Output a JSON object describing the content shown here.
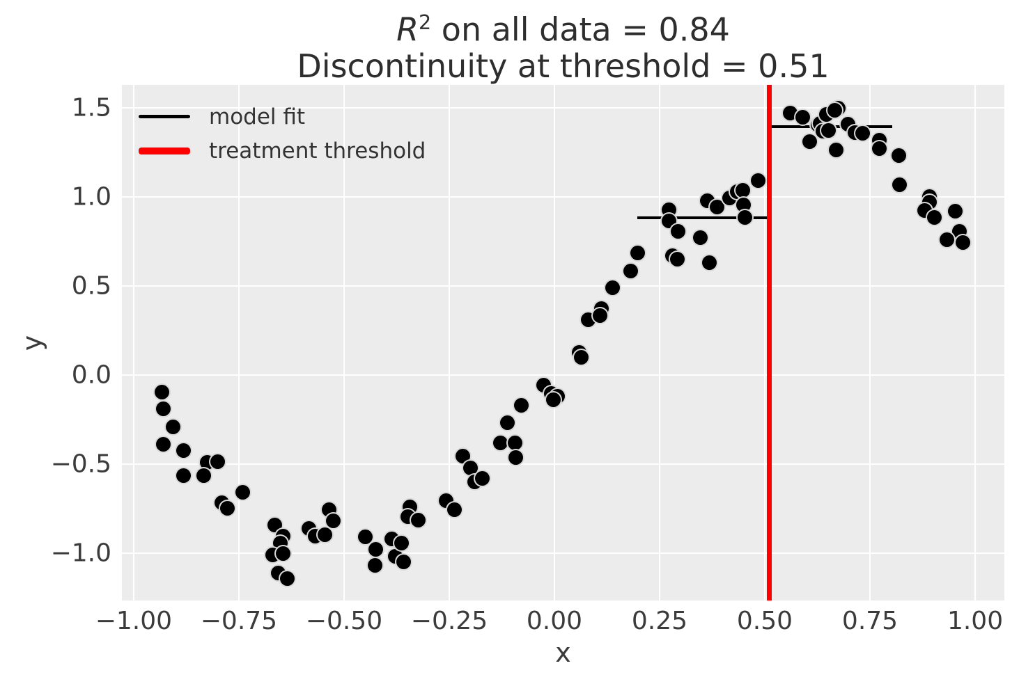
{
  "figure": {
    "title": {
      "r": "R",
      "exponent": "2",
      "line1_rest": " on all data = 0.84",
      "line2": "Discontinuity at threshold = 0.51"
    },
    "xlabel": "x",
    "ylabel": "y"
  },
  "legend": {
    "items": [
      {
        "label": "model fit",
        "color": "#000000",
        "thickness": 5
      },
      {
        "label": "treatment threshold",
        "color": "#ff0000",
        "thickness": 10
      }
    ]
  },
  "chart_data": {
    "type": "scatter",
    "title": "R^2 on all data = 0.84\nDiscontinuity at threshold = 0.51",
    "xlabel": "x",
    "ylabel": "y",
    "xlim": [
      -1.028,
      1.0695
    ],
    "ylim": [
      -1.266,
      1.629
    ],
    "grid": true,
    "background": "#ececec",
    "gridline_color": "#ffffff",
    "marker_color": "#000000",
    "xticks": [
      -1.0,
      -0.75,
      -0.5,
      -0.25,
      0.0,
      0.25,
      0.5,
      0.75,
      1.0
    ],
    "xtick_labels": [
      "−1.00",
      "−0.75",
      "−0.50",
      "−0.25",
      "0.00",
      "0.25",
      "0.50",
      "0.75",
      "1.00"
    ],
    "yticks": [
      1.5,
      1.0,
      0.5,
      0.0,
      -0.5,
      -1.0
    ],
    "ytick_labels": [
      "1.5",
      "1.0",
      "0.5",
      "0.0",
      "−0.5",
      "−1.0"
    ],
    "legend_position": "upper left",
    "threshold": {
      "x": 0.51,
      "color": "#ff0000",
      "label": "treatment threshold"
    },
    "fit_segments": [
      {
        "x1": 0.197,
        "x2": 0.51,
        "y": 0.883,
        "label": "model fit"
      },
      {
        "x1": 0.51,
        "x2": 0.803,
        "y": 1.395,
        "label": "model fit"
      }
    ],
    "points": [
      [
        -0.932,
        -0.094
      ],
      [
        -0.929,
        -0.188
      ],
      [
        -0.906,
        -0.293
      ],
      [
        -0.929,
        -0.387
      ],
      [
        -0.881,
        -0.426
      ],
      [
        -0.826,
        -0.492
      ],
      [
        -0.8,
        -0.488
      ],
      [
        -0.881,
        -0.563
      ],
      [
        -0.833,
        -0.566
      ],
      [
        -0.74,
        -0.66
      ],
      [
        -0.791,
        -0.719
      ],
      [
        -0.778,
        -0.75
      ],
      [
        -0.665,
        -0.844
      ],
      [
        -0.644,
        -0.906
      ],
      [
        -0.651,
        -0.945
      ],
      [
        -0.669,
        -1.012
      ],
      [
        -0.644,
        -1.004
      ],
      [
        -0.656,
        -1.113
      ],
      [
        -0.634,
        -1.141
      ],
      [
        -0.583,
        -0.863
      ],
      [
        -0.568,
        -0.906
      ],
      [
        -0.545,
        -0.895
      ],
      [
        -0.536,
        -0.758
      ],
      [
        -0.525,
        -0.82
      ],
      [
        -0.449,
        -0.91
      ],
      [
        -0.424,
        -0.98
      ],
      [
        -0.426,
        -1.07
      ],
      [
        -0.386,
        -0.922
      ],
      [
        -0.379,
        -1.016
      ],
      [
        -0.344,
        -0.742
      ],
      [
        -0.349,
        -0.797
      ],
      [
        -0.323,
        -0.813
      ],
      [
        -0.363,
        -0.945
      ],
      [
        -0.358,
        -1.051
      ],
      [
        -0.257,
        -0.707
      ],
      [
        -0.237,
        -0.758
      ],
      [
        -0.217,
        -0.457
      ],
      [
        -0.2,
        -0.52
      ],
      [
        -0.189,
        -0.598
      ],
      [
        -0.172,
        -0.582
      ],
      [
        -0.129,
        -0.383
      ],
      [
        -0.094,
        -0.383
      ],
      [
        -0.091,
        -0.465
      ],
      [
        -0.112,
        -0.266
      ],
      [
        -0.079,
        -0.172
      ],
      [
        -0.025,
        -0.055
      ],
      [
        -0.008,
        -0.102
      ],
      [
        0.008,
        -0.121
      ],
      [
        -0.002,
        -0.137
      ],
      [
        0.059,
        0.125
      ],
      [
        0.064,
        0.098
      ],
      [
        0.081,
        0.309
      ],
      [
        0.111,
        0.371
      ],
      [
        0.109,
        0.332
      ],
      [
        0.139,
        0.492
      ],
      [
        0.182,
        0.582
      ],
      [
        0.198,
        0.684
      ],
      [
        0.273,
        0.926
      ],
      [
        0.273,
        0.867
      ],
      [
        0.28,
        0.668
      ],
      [
        0.293,
        0.652
      ],
      [
        0.294,
        0.805
      ],
      [
        0.347,
        0.773
      ],
      [
        0.364,
        0.98
      ],
      [
        0.369,
        0.631
      ],
      [
        0.387,
        0.945
      ],
      [
        0.417,
        0.996
      ],
      [
        0.434,
        1.031
      ],
      [
        0.448,
        1.039
      ],
      [
        0.45,
        0.957
      ],
      [
        0.453,
        0.883
      ],
      [
        0.485,
        1.09
      ],
      [
        0.561,
        1.469
      ],
      [
        0.591,
        1.449
      ],
      [
        0.607,
        1.312
      ],
      [
        0.627,
        1.406
      ],
      [
        0.631,
        1.414
      ],
      [
        0.647,
        1.463
      ],
      [
        0.639,
        1.371
      ],
      [
        0.651,
        1.375
      ],
      [
        0.674,
        1.5
      ],
      [
        0.666,
        1.488
      ],
      [
        0.669,
        1.262
      ],
      [
        0.698,
        1.41
      ],
      [
        0.715,
        1.363
      ],
      [
        0.733,
        1.359
      ],
      [
        0.773,
        1.32
      ],
      [
        0.773,
        1.27
      ],
      [
        0.818,
        1.234
      ],
      [
        0.821,
        1.07
      ],
      [
        0.892,
        1.0
      ],
      [
        0.892,
        0.969
      ],
      [
        0.88,
        0.922
      ],
      [
        0.903,
        0.883
      ],
      [
        0.952,
        0.918
      ],
      [
        0.963,
        0.805
      ],
      [
        0.933,
        0.758
      ],
      [
        0.971,
        0.746
      ]
    ]
  }
}
